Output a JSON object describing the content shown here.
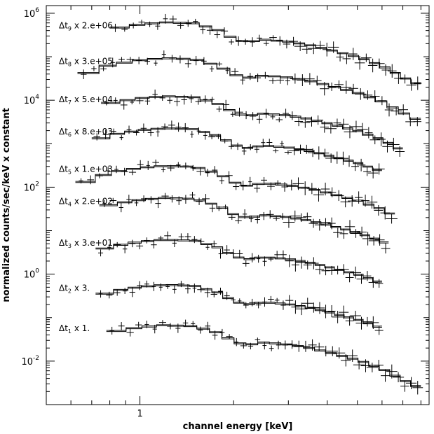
{
  "chart_data": {
    "type": "line",
    "xlabel": "channel energy [keV]",
    "ylabel": "normalized counts/sec/keV x constant",
    "x_scale": "log",
    "y_scale": "log",
    "xlim": [
      0.5,
      8.5
    ],
    "ylim": [
      0.001,
      1500000
    ],
    "x_tick_labels": [
      {
        "value": 1,
        "label": "1"
      }
    ],
    "y_tick_labels": [
      {
        "value": 0.01,
        "base": "10",
        "exp": "-2"
      },
      {
        "value": 1,
        "base": "10",
        "exp": "0"
      },
      {
        "value": 100,
        "base": "10",
        "exp": "2"
      },
      {
        "value": 10000,
        "base": "10",
        "exp": "4"
      },
      {
        "value": 1000000,
        "base": "10",
        "exp": "6"
      }
    ],
    "model": {
      "x": [
        0.62,
        0.8,
        1.0,
        1.2,
        1.5,
        1.8,
        2.0,
        2.2,
        2.5,
        3.0,
        3.5,
        4.0,
        5.0,
        6.0,
        7.0,
        8.0
      ],
      "shape": [
        0.35,
        0.7,
        0.9,
        1.0,
        0.95,
        0.65,
        0.42,
        0.35,
        0.4,
        0.36,
        0.3,
        0.24,
        0.16,
        0.1,
        0.055,
        0.035
      ]
    },
    "series": [
      {
        "label_dt": "Δt",
        "label_sub": "1",
        "label_factor": "x 1.",
        "norm": 0.065,
        "x_range": [
          0.78,
          8.0
        ]
      },
      {
        "label_dt": "Δt",
        "label_sub": "2",
        "label_factor": "x 3.",
        "norm": 0.55,
        "x_range": [
          0.72,
          6.0
        ]
      },
      {
        "label_dt": "Δt",
        "label_sub": "3",
        "label_factor": "x 3.e+01",
        "norm": 6.0,
        "x_range": [
          0.72,
          6.0
        ]
      },
      {
        "label_dt": "Δt",
        "label_sub": "4",
        "label_factor": "x 2.e+02",
        "norm": 55,
        "x_range": [
          0.74,
          6.3
        ]
      },
      {
        "label_dt": "Δt",
        "label_sub": "5",
        "label_factor": "x 1.e+03",
        "norm": 300,
        "x_range": [
          0.62,
          6.6
        ]
      },
      {
        "label_dt": "Δt",
        "label_sub": "6",
        "label_factor": "x 8.e+03",
        "norm": 2200,
        "x_range": [
          0.7,
          6.0
        ]
      },
      {
        "label_dt": "Δt",
        "label_sub": "7",
        "label_factor": "x 5.e+04",
        "norm": 12000,
        "x_range": [
          0.75,
          7.0
        ]
      },
      {
        "label_dt": "Δt",
        "label_sub": "8",
        "label_factor": "x 3.e+05",
        "norm": 90000,
        "x_range": [
          0.63,
          8.0
        ]
      },
      {
        "label_dt": "Δt",
        "label_sub": "9",
        "label_factor": "x 2.e+06",
        "norm": 600000,
        "x_range": [
          0.8,
          8.0
        ]
      }
    ]
  }
}
